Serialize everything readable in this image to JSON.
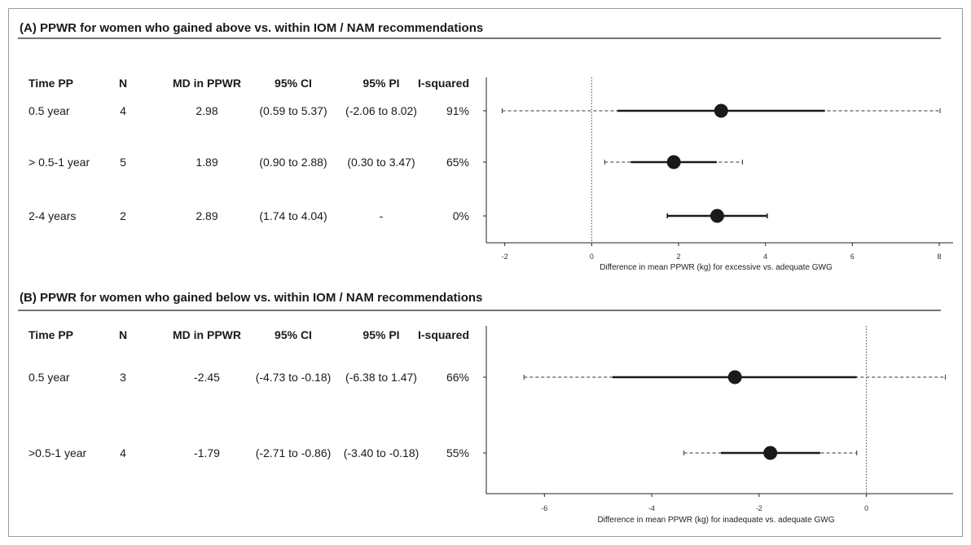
{
  "columns": [
    "Time PP",
    "N",
    "MD in PPWR",
    "95% CI",
    "95% PI",
    "I-squared"
  ],
  "chart_data": [
    {
      "type": "forest",
      "title": "(A)  PPWR for women who gained above vs. within IOM / NAM recommendations",
      "xlabel": "Difference in mean PPWR (kg) for excessive vs. adequate GWG",
      "xlim": [
        -2.2,
        8.3
      ],
      "xticks": [
        "-2",
        "0",
        "2",
        "4",
        "6",
        "8"
      ],
      "reference_line": 0,
      "rows": [
        {
          "time": "0.5 year",
          "n": "4",
          "md_text": "2.98",
          "ci_text": "(0.59 to 5.37)",
          "pi_text": "(-2.06 to 8.02)",
          "i2": "91%",
          "md": 2.98,
          "ci": [
            0.59,
            5.37
          ],
          "pi": [
            -2.06,
            8.02
          ]
        },
        {
          "time": "> 0.5-1 year",
          "n": "5",
          "md_text": "1.89",
          "ci_text": "(0.90 to 2.88)",
          "pi_text": "(0.30 to 3.47)",
          "i2": "65%",
          "md": 1.89,
          "ci": [
            0.9,
            2.88
          ],
          "pi": [
            0.3,
            3.47
          ]
        },
        {
          "time": "2-4 years",
          "n": "2",
          "md_text": "2.89",
          "ci_text": "(1.74 to 4.04)",
          "pi_text": "-",
          "i2": "0%",
          "md": 2.89,
          "ci": [
            1.74,
            4.04
          ],
          "pi": null
        }
      ]
    },
    {
      "type": "forest",
      "title": "(B)  PPWR for women who gained below vs. within IOM / NAM recommendations",
      "xlabel": "Difference in mean PPWR (kg) for inadequate vs. adequate GWG",
      "xlim": [
        -6.9,
        1.6
      ],
      "xticks": [
        "-6",
        "-4",
        "-2",
        "0"
      ],
      "reference_line": 0,
      "rows": [
        {
          "time": "0.5 year",
          "n": "3",
          "md_text": "-2.45",
          "ci_text": "(-4.73 to -0.18)",
          "pi_text": "(-6.38 to 1.47)",
          "i2": "66%",
          "md": -2.45,
          "ci": [
            -4.73,
            -0.18
          ],
          "pi": [
            -6.38,
            1.47
          ]
        },
        {
          "time": ">0.5-1 year",
          "n": "4",
          "md_text": "-1.79",
          "ci_text": "(-2.71 to -0.86)",
          "pi_text": "(-3.40 to -0.18)",
          "i2": "55%",
          "md": -1.79,
          "ci": [
            -2.71,
            -0.86
          ],
          "pi": [
            -3.4,
            -0.18
          ]
        }
      ]
    }
  ]
}
